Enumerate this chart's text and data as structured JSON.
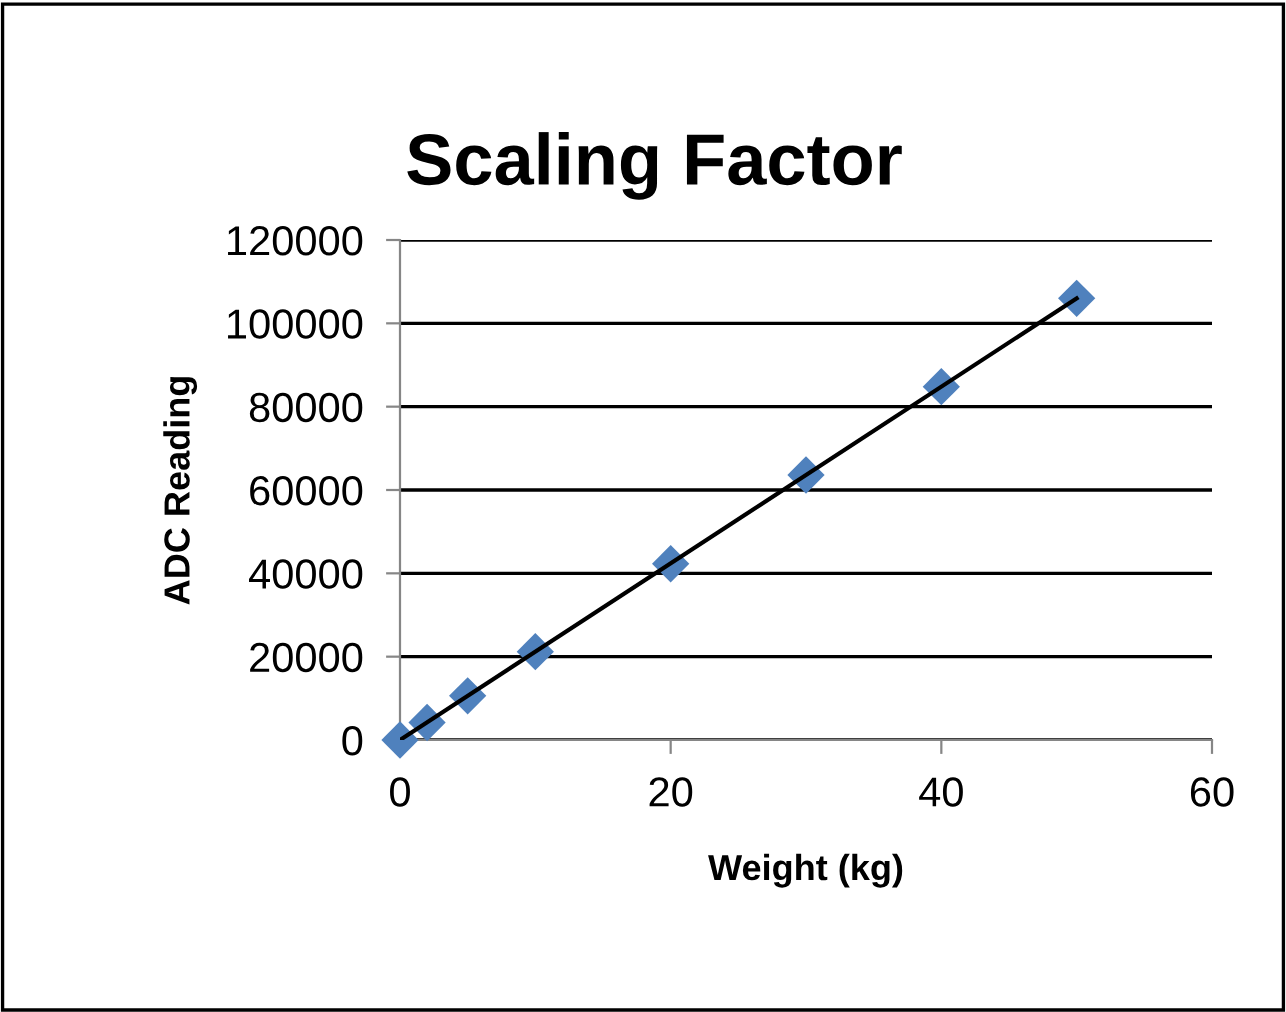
{
  "chart_data": {
    "type": "scatter",
    "title": "Scaling Factor",
    "xlabel": "Weight (kg)",
    "ylabel": "ADC Reading",
    "xlim": [
      0,
      60
    ],
    "xticks": [
      0,
      20,
      40,
      60
    ],
    "ylim": [
      0,
      120000
    ],
    "yticks": [
      0,
      20000,
      40000,
      60000,
      80000,
      100000,
      120000
    ],
    "grid": "y",
    "marker": "diamond",
    "legend": false,
    "series": [
      {
        "color": "#4f81bd",
        "x": [
          0,
          2,
          5,
          10,
          20,
          30,
          40,
          50
        ],
        "values": [
          0,
          4200,
          10600,
          21200,
          42300,
          63600,
          84800,
          106000
        ]
      },
      {
        "type": "line",
        "marker": "none",
        "color": "#000000",
        "x": [
          0,
          50
        ],
        "values": [
          0,
          106000
        ]
      }
    ]
  }
}
